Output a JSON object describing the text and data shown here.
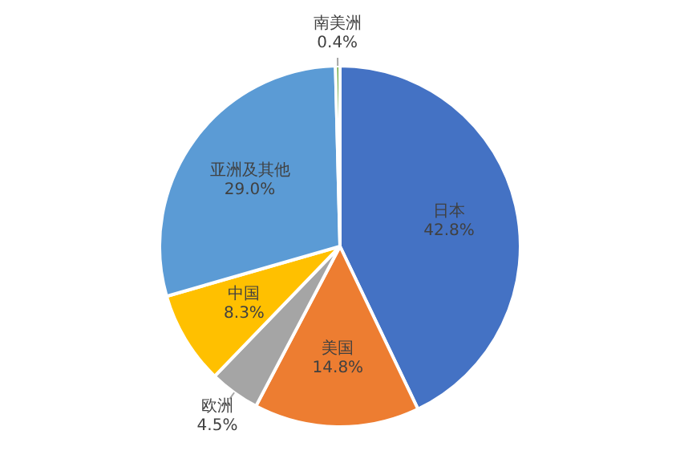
{
  "chart_data": {
    "type": "pie",
    "categories": [
      "日本",
      "美国",
      "欧洲",
      "中国",
      "亚洲及其他",
      "南美洲"
    ],
    "values": [
      42.8,
      14.8,
      4.5,
      8.3,
      29.0,
      0.4
    ],
    "value_labels": [
      "42.8%",
      "14.8%",
      "4.5%",
      "8.3%",
      "29.0%",
      "0.4%"
    ],
    "colors": [
      "#4472c4",
      "#ed7d31",
      "#a5a5a5",
      "#ffc000",
      "#5b9bd5",
      "#70ad47"
    ],
    "legend": false
  }
}
